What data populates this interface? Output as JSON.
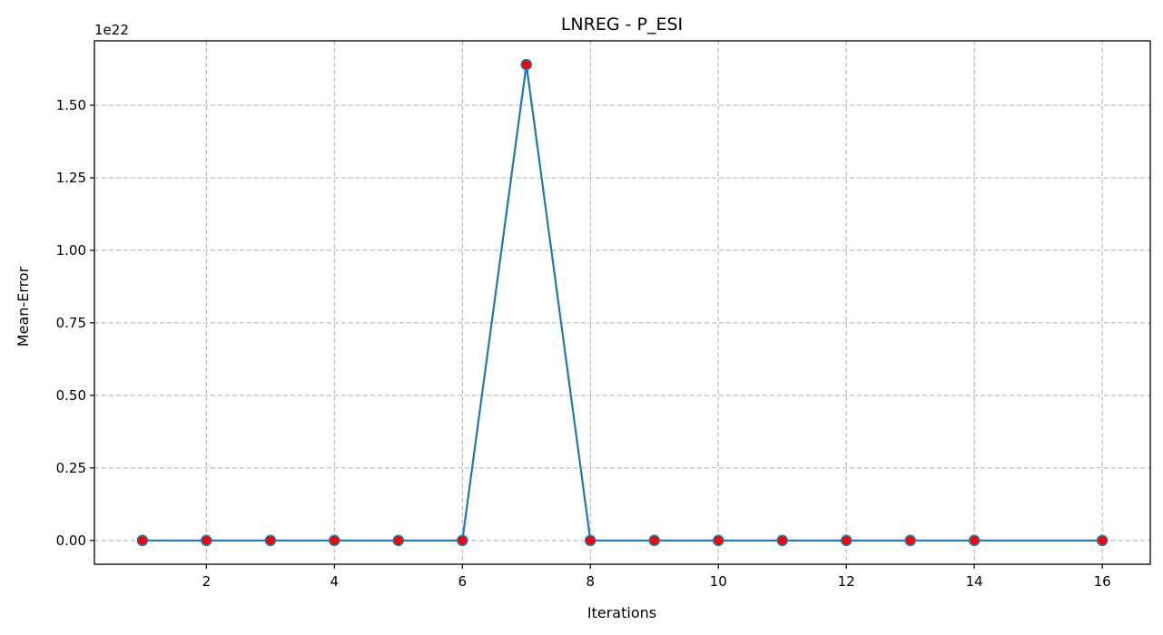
{
  "chart_data": {
    "type": "line",
    "title": "LNREG - P_ESI",
    "xlabel": "Iterations",
    "ylabel": "Mean-Error",
    "y_offset_label": "1e22",
    "x": [
      1,
      2,
      3,
      4,
      5,
      6,
      7,
      8,
      9,
      10,
      11,
      12,
      13,
      14,
      16
    ],
    "series": [
      {
        "values": [
          0,
          0,
          0,
          0,
          0,
          0,
          1.64,
          0,
          0,
          0,
          0,
          0,
          0,
          0,
          0
        ]
      }
    ],
    "y_scale_exponent": 22,
    "xlim": [
      0.25,
      16.75
    ],
    "ylim": [
      -0.082,
      1.722
    ],
    "x_ticks": [
      2,
      4,
      6,
      8,
      10,
      12,
      14,
      16
    ],
    "x_tick_labels": [
      "2",
      "4",
      "6",
      "8",
      "10",
      "12",
      "14",
      "16"
    ],
    "y_ticks": [
      0,
      0.25,
      0.5,
      0.75,
      1.0,
      1.25,
      1.5
    ],
    "y_tick_labels": [
      "0.00",
      "0.25",
      "0.50",
      "0.75",
      "1.00",
      "1.25",
      "1.50"
    ],
    "grid": true,
    "legend": false,
    "colors": {
      "line": "#1f77b4",
      "marker_fill": "#ff0000",
      "marker_edge": "#1f77b4",
      "grid": "#b0b0b0",
      "axes": "#000000"
    }
  }
}
